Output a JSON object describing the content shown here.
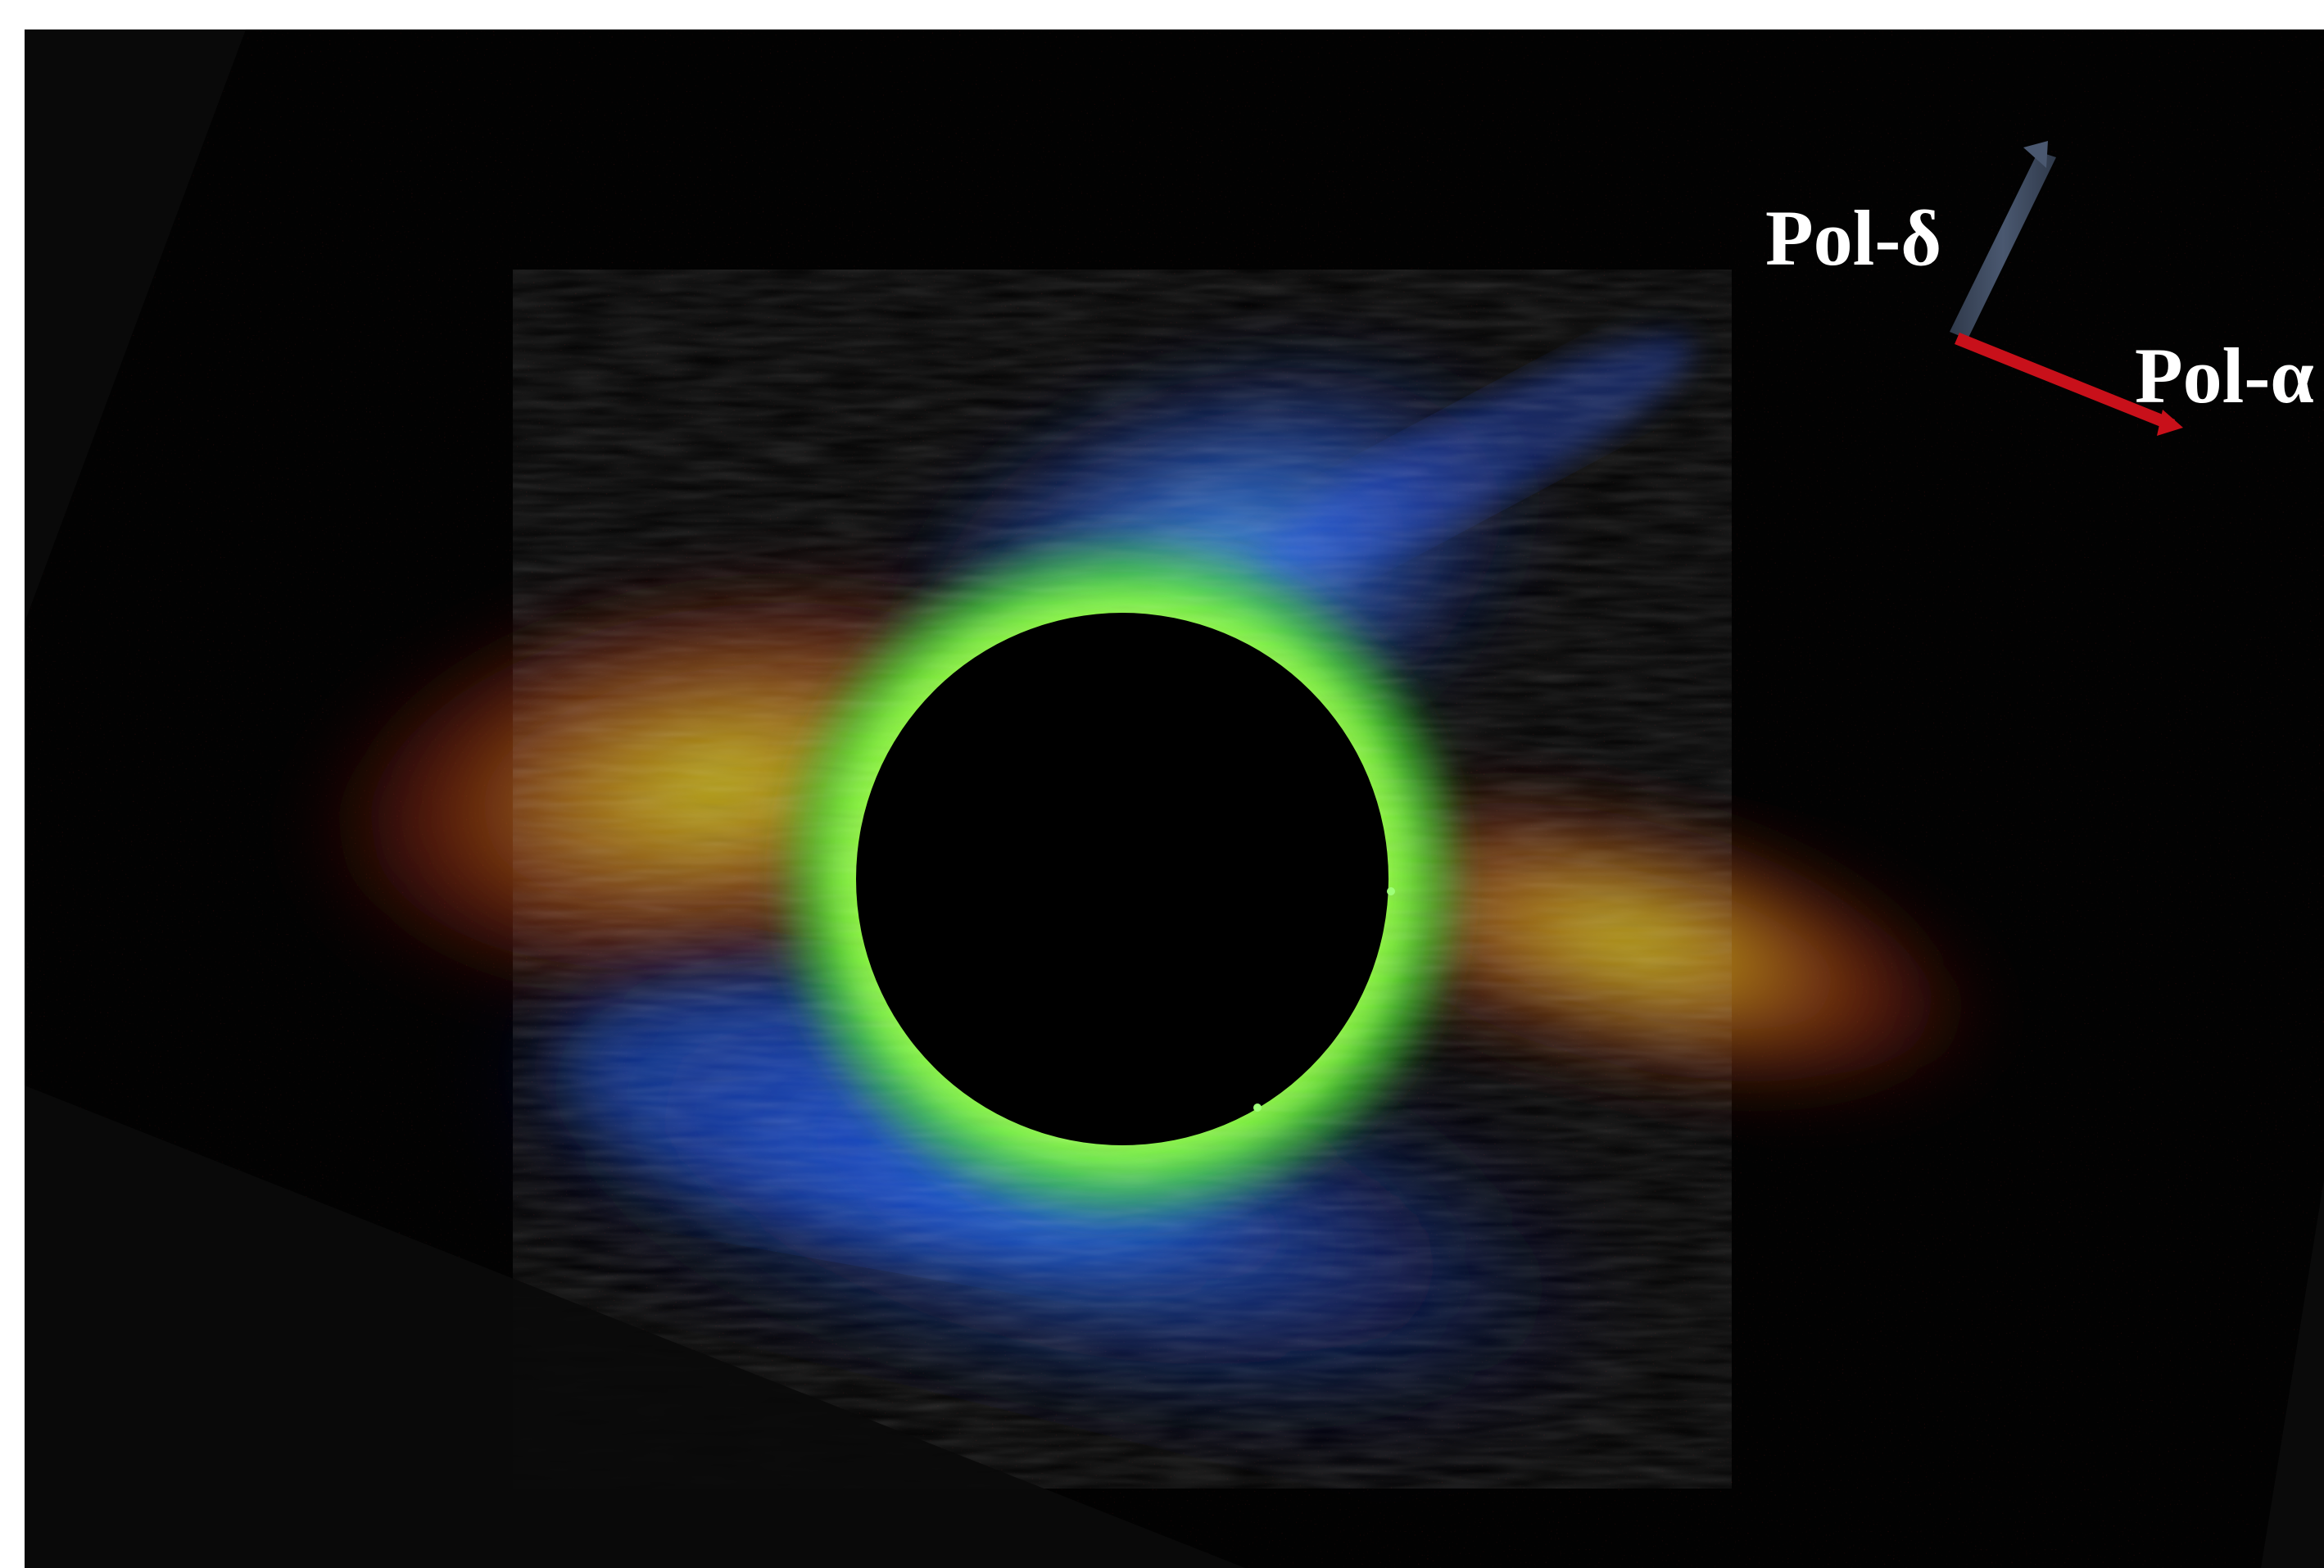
{
  "figure": {
    "pol_delta_label": "Pol-δ",
    "pol_alpha_label": "Pol-α"
  },
  "colors": {
    "background_outer": "#ffffff",
    "frame_dark": "#0a0a0a",
    "sky": "#020202",
    "moon_disk": "#000000",
    "label_text": "#ffffff",
    "arrow_delta": "#3a4659",
    "arrow_alpha": "#c8101a",
    "corona_inner_green": "#7cff2e",
    "corona_mid_yellow": "#b8c81a",
    "corona_outer_red": "#b3301a",
    "corona_polar_blue": "#2a7cff",
    "corona_deep_blue": "#1a2cc8"
  },
  "icons": {
    "pol_delta_arrow": "arrow-up-right-icon",
    "pol_alpha_arrow": "arrow-down-right-icon"
  }
}
